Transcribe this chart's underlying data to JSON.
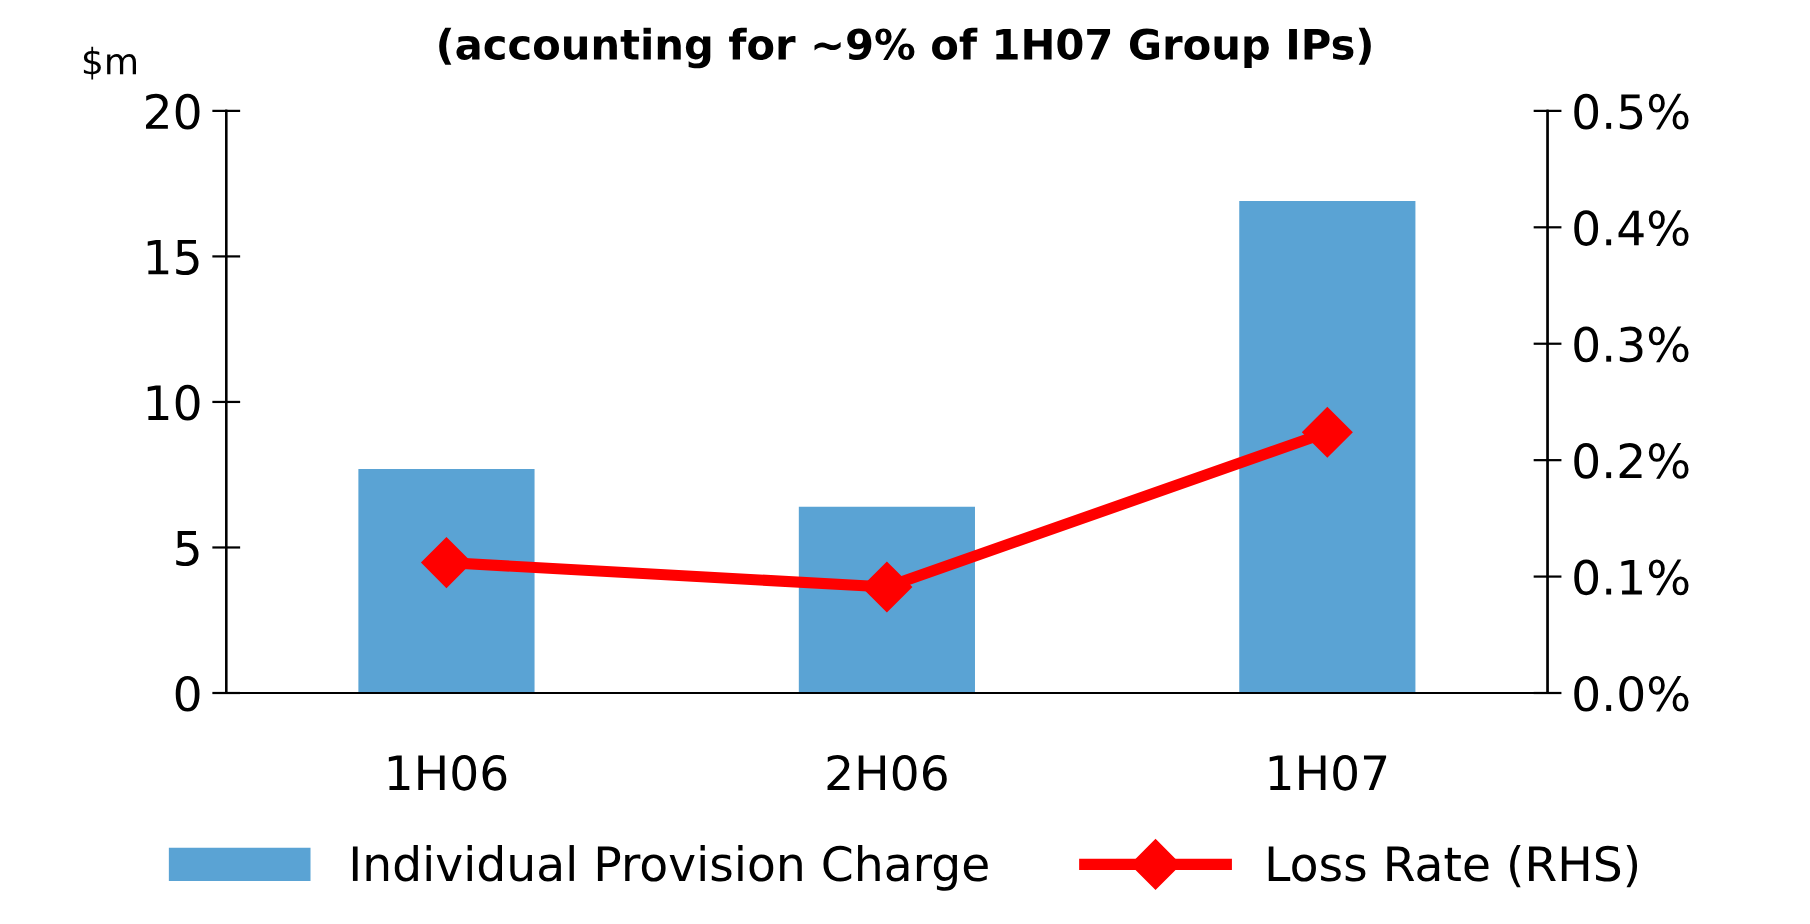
{
  "chart_data": {
    "type": "bar",
    "title": "(accounting for ~9% of 1H07 Group IPs)",
    "ylabel": "$m",
    "categories": [
      "1H06",
      "2H06",
      "1H07"
    ],
    "series": [
      {
        "name": "Individual Provision Charge",
        "color": "#5aa3d4",
        "values": [
          7.7,
          6.4,
          16.9
        ]
      },
      {
        "name": "Loss Rate (RHS)",
        "type": "line",
        "axis": "y2",
        "color": "#ff0000",
        "marker": "diamond",
        "values": [
          0.112,
          0.091,
          0.224
        ]
      }
    ],
    "ylim": [
      0,
      20
    ],
    "yticks": [
      0,
      5,
      10,
      15,
      20
    ],
    "y2lim": [
      0,
      0.5
    ],
    "y2ticks": [
      {
        "value": 0,
        "label": "0.0%"
      },
      {
        "value": 0.1,
        "label": "0.1%"
      },
      {
        "value": 0.2,
        "label": "0.2%"
      },
      {
        "value": 0.3,
        "label": "0.3%"
      },
      {
        "value": 0.4,
        "label": "0.4%"
      },
      {
        "value": 0.5,
        "label": "0.5%"
      }
    ],
    "grid": false,
    "legend": "bottom"
  }
}
